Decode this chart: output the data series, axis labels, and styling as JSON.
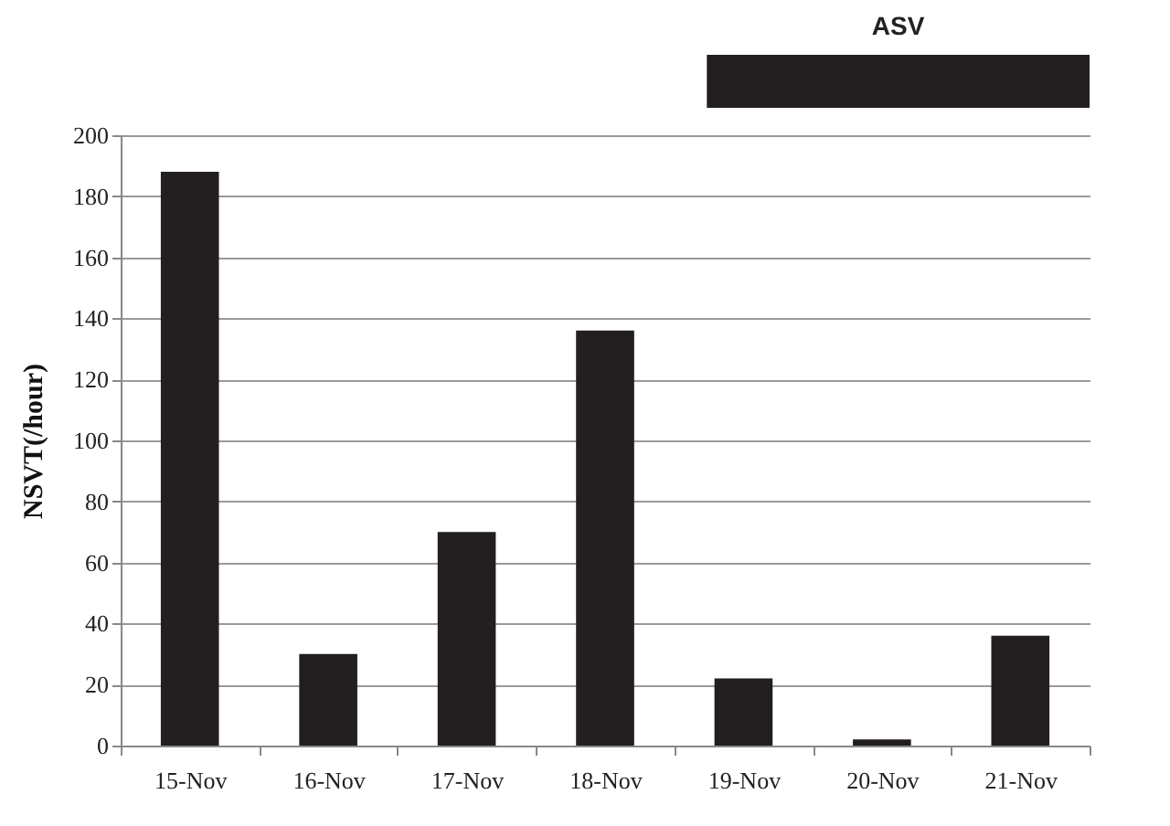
{
  "chart_data": {
    "type": "bar",
    "ylabel": "NSVT(/hour)",
    "categories": [
      "15-Nov",
      "16-Nov",
      "17-Nov",
      "18-Nov",
      "19-Nov",
      "20-Nov",
      "21-Nov"
    ],
    "values": [
      188,
      30,
      70,
      136,
      22,
      2,
      36
    ],
    "color": "#231f20",
    "ylim": [
      0,
      200
    ],
    "yticks": [
      0,
      20,
      40,
      60,
      80,
      100,
      120,
      140,
      160,
      180,
      200
    ],
    "grid": "y",
    "annotations": [
      "ASV"
    ]
  }
}
